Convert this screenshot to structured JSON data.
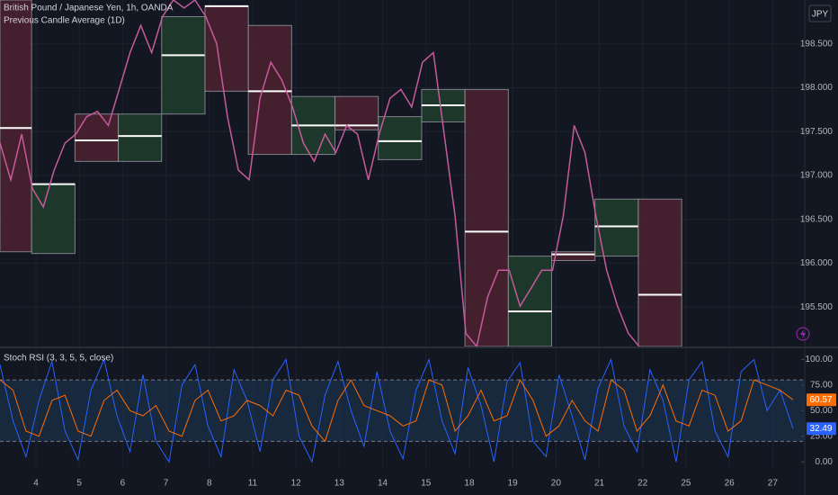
{
  "chart_data": [
    {
      "type": "line",
      "title": "British Pound / Japanese Yen, 1h, OANDA",
      "subtitle": "Previous Candle Average (1D)",
      "currency": "JPY",
      "xlim": [
        -0.83,
        17.74
      ],
      "ylim": [
        195.05,
        199.0
      ],
      "yticks": [
        {
          "value": 198.5,
          "label": "198.500"
        },
        {
          "value": 198.0,
          "label": "198.000"
        },
        {
          "value": 197.5,
          "label": "197.500"
        },
        {
          "value": 197.0,
          "label": "197.000"
        },
        {
          "value": 196.5,
          "label": "196.500"
        },
        {
          "value": 196.0,
          "label": "196.000"
        },
        {
          "value": 195.5,
          "label": "195.500"
        }
      ],
      "grid": true,
      "x": [
        -0.83,
        -0.58,
        -0.33,
        -0.08,
        0.17,
        0.42,
        0.67,
        0.92,
        1.17,
        1.42,
        1.67,
        1.92,
        2.17,
        2.42,
        2.67,
        2.92,
        3.17,
        3.42,
        3.67,
        3.92,
        4.17,
        4.42,
        4.67,
        4.92,
        5.17,
        5.42,
        5.67,
        5.92,
        6.17,
        6.42,
        6.67,
        6.92,
        7.17,
        7.42,
        7.67,
        7.92,
        8.17,
        8.42,
        8.67,
        8.92,
        9.17,
        9.42,
        9.67,
        9.92,
        10.17,
        10.42,
        10.67,
        10.92,
        11.17,
        11.42,
        11.67,
        11.92,
        12.17,
        12.42,
        12.67,
        12.92,
        13.17,
        13.42,
        13.67,
        13.92
      ],
      "series": [
        {
          "color": "#c65a9b",
          "values": [
            197.37,
            196.95,
            197.47,
            196.85,
            196.64,
            197.06,
            197.37,
            197.47,
            197.67,
            197.73,
            197.57,
            197.98,
            198.4,
            198.71,
            198.4,
            198.81,
            199.0,
            198.91,
            199.0,
            198.81,
            198.5,
            197.67,
            197.06,
            196.95,
            197.88,
            198.29,
            198.09,
            197.78,
            197.37,
            197.16,
            197.47,
            197.26,
            197.57,
            197.47,
            196.95,
            197.47,
            197.88,
            197.98,
            197.78,
            198.29,
            198.4,
            197.47,
            196.54,
            195.2,
            195.05,
            195.61,
            195.92,
            195.92,
            195.51,
            195.71,
            195.92,
            195.92,
            196.54,
            197.57,
            197.26,
            196.54,
            195.92,
            195.51,
            195.2,
            195.05
          ]
        }
      ],
      "avg_color": "#ffffff",
      "box_border": "#8a8d96",
      "boxes": [
        {
          "start": -0.83,
          "end": -0.1,
          "high": 199.0,
          "low": 196.13,
          "avg": 197.54,
          "color": "#4a2230"
        },
        {
          "start": -0.1,
          "end": 0.9,
          "high": 196.9,
          "low": 196.11,
          "avg": 196.9,
          "color": "#1f3b2b"
        },
        {
          "start": 0.9,
          "end": 1.9,
          "high": 197.7,
          "low": 197.16,
          "avg": 197.4,
          "color": "#4a2230"
        },
        {
          "start": 1.9,
          "end": 2.9,
          "high": 197.7,
          "low": 197.16,
          "avg": 197.45,
          "color": "#1f3b2b"
        },
        {
          "start": 2.9,
          "end": 3.9,
          "high": 198.81,
          "low": 197.7,
          "avg": 198.37,
          "color": "#1f3b2b"
        },
        {
          "start": 3.9,
          "end": 4.9,
          "high": 198.93,
          "low": 197.96,
          "avg": 198.93,
          "color": "#4a2230"
        },
        {
          "start": 4.9,
          "end": 5.9,
          "high": 198.71,
          "low": 197.24,
          "avg": 197.96,
          "color": "#4a2230"
        },
        {
          "start": 5.9,
          "end": 6.9,
          "high": 197.9,
          "low": 197.24,
          "avg": 197.57,
          "color": "#1f3b2b"
        },
        {
          "start": 6.9,
          "end": 7.9,
          "high": 197.9,
          "low": 197.52,
          "avg": 197.57,
          "color": "#4a2230"
        },
        {
          "start": 7.9,
          "end": 8.9,
          "high": 197.67,
          "low": 197.18,
          "avg": 197.39,
          "color": "#1f3b2b"
        },
        {
          "start": 8.9,
          "end": 9.9,
          "high": 197.98,
          "low": 197.61,
          "avg": 197.8,
          "color": "#1f3b2b"
        },
        {
          "start": 9.9,
          "end": 10.9,
          "high": 197.98,
          "low": 195.05,
          "avg": 196.36,
          "color": "#4a2230"
        },
        {
          "start": 10.9,
          "end": 11.9,
          "high": 196.08,
          "low": 195.05,
          "avg": 195.45,
          "color": "#1f3b2b"
        },
        {
          "start": 11.9,
          "end": 12.9,
          "high": 196.13,
          "low": 196.03,
          "avg": 196.1,
          "color": "#4a2230"
        },
        {
          "start": 12.9,
          "end": 13.9,
          "high": 196.73,
          "low": 196.08,
          "avg": 196.42,
          "color": "#1f3b2b"
        },
        {
          "start": 13.9,
          "end": 14.9,
          "high": 196.73,
          "low": 195.05,
          "avg": 195.64,
          "color": "#4a2230"
        }
      ]
    },
    {
      "type": "line",
      "title": "Stoch RSI (3, 3, 5, 5, close)",
      "xlim": [
        -0.83,
        17.74
      ],
      "ylim": [
        -6,
        110
      ],
      "yticks": [
        {
          "value": 100,
          "label": "100.00"
        },
        {
          "value": 75,
          "label": "75.00"
        },
        {
          "value": 50,
          "label": "50.00"
        },
        {
          "value": 25,
          "label": "25.00"
        },
        {
          "value": 0,
          "label": "0.00"
        }
      ],
      "band": [
        20,
        80
      ],
      "band_color": "#1c3350",
      "xticks": [
        {
          "value": 0,
          "label": "4"
        },
        {
          "value": 1,
          "label": "5"
        },
        {
          "value": 2,
          "label": "6"
        },
        {
          "value": 3,
          "label": "7"
        },
        {
          "value": 4,
          "label": "8"
        },
        {
          "value": 5,
          "label": "11"
        },
        {
          "value": 6,
          "label": "12"
        },
        {
          "value": 7,
          "label": "13"
        },
        {
          "value": 8,
          "label": "14"
        },
        {
          "value": 9,
          "label": "15"
        },
        {
          "value": 10,
          "label": "18"
        },
        {
          "value": 11,
          "label": "19"
        },
        {
          "value": 12,
          "label": "20"
        },
        {
          "value": 13,
          "label": "21"
        },
        {
          "value": 14,
          "label": "22"
        },
        {
          "value": 15,
          "label": "25"
        },
        {
          "value": 16,
          "label": "26"
        },
        {
          "value": 17,
          "label": "27"
        }
      ],
      "x": [
        -0.83,
        -0.53,
        -0.23,
        0.07,
        0.37,
        0.67,
        0.97,
        1.27,
        1.57,
        1.87,
        2.17,
        2.47,
        2.77,
        3.07,
        3.37,
        3.67,
        3.97,
        4.27,
        4.57,
        4.87,
        5.17,
        5.47,
        5.77,
        6.07,
        6.37,
        6.67,
        6.97,
        7.27,
        7.57,
        7.87,
        8.17,
        8.47,
        8.77,
        9.07,
        9.37,
        9.67,
        9.97,
        10.27,
        10.57,
        10.87,
        11.17,
        11.47,
        11.77,
        12.07,
        12.37,
        12.67,
        12.97,
        13.27,
        13.57,
        13.87,
        14.17,
        14.47,
        14.77,
        15.07,
        15.37,
        15.67,
        15.97,
        16.27,
        16.57,
        16.87,
        17.17,
        17.47
      ],
      "series": [
        {
          "color": "#2962ff",
          "values": [
            95,
            40,
            5,
            60,
            98,
            30,
            2,
            70,
            100,
            45,
            10,
            85,
            20,
            0,
            75,
            95,
            35,
            5,
            90,
            60,
            10,
            80,
            100,
            25,
            0,
            65,
            98,
            50,
            15,
            88,
            30,
            3,
            70,
            100,
            40,
            8,
            92,
            55,
            0,
            78,
            97,
            20,
            5,
            85,
            45,
            2,
            72,
            100,
            35,
            10,
            90,
            60,
            0,
            80,
            98,
            30,
            5,
            88,
            100,
            50,
            70,
            32.49
          ]
        },
        {
          "color": "#ff6d00",
          "values": [
            80,
            70,
            30,
            25,
            60,
            65,
            30,
            25,
            60,
            70,
            50,
            45,
            55,
            30,
            25,
            60,
            70,
            40,
            45,
            60,
            55,
            45,
            70,
            65,
            35,
            20,
            60,
            80,
            55,
            50,
            45,
            35,
            40,
            80,
            75,
            30,
            45,
            70,
            40,
            45,
            80,
            60,
            25,
            35,
            60,
            40,
            30,
            80,
            70,
            30,
            45,
            75,
            40,
            35,
            70,
            65,
            30,
            40,
            80,
            75,
            70,
            60.57
          ]
        }
      ]
    }
  ]
}
